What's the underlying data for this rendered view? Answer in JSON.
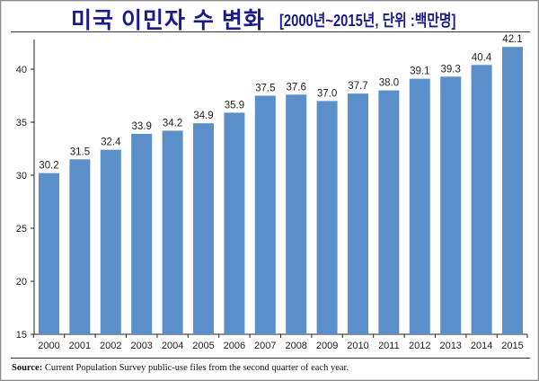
{
  "header": {
    "title": "미국 이민자 수 변화",
    "subtitle": "[2000년~2015년, 단위 :백만명]"
  },
  "footer": {
    "source_label": "Source:",
    "source_text": "Current Population Survey public-use files from the second quarter of each year."
  },
  "chart_data": {
    "type": "bar",
    "categories": [
      "2000",
      "2001",
      "2002",
      "2003",
      "2004",
      "2005",
      "2006",
      "2007",
      "2008",
      "2009",
      "2010",
      "2011",
      "2012",
      "2013",
      "2014",
      "2015"
    ],
    "values": [
      30.2,
      31.5,
      32.4,
      33.9,
      34.2,
      34.9,
      35.9,
      37.5,
      37.6,
      37.0,
      37.7,
      38.0,
      39.1,
      39.3,
      40.4,
      42.1
    ],
    "data_labels": [
      "30.2",
      "31.5",
      "32.4",
      "33.9",
      "34.2",
      "34.9",
      "35.9",
      "37.5",
      "37.6",
      "37.0",
      "37.7",
      "38.0",
      "39.1",
      "39.3",
      "40.4",
      "42.1"
    ],
    "yticks": [
      "15",
      "20",
      "25",
      "30",
      "35",
      "40"
    ],
    "ylim": [
      15,
      42.8
    ],
    "grid": false,
    "legend": "none",
    "bar_color": "#5b8fca",
    "title_color": "#1a1a8c"
  }
}
